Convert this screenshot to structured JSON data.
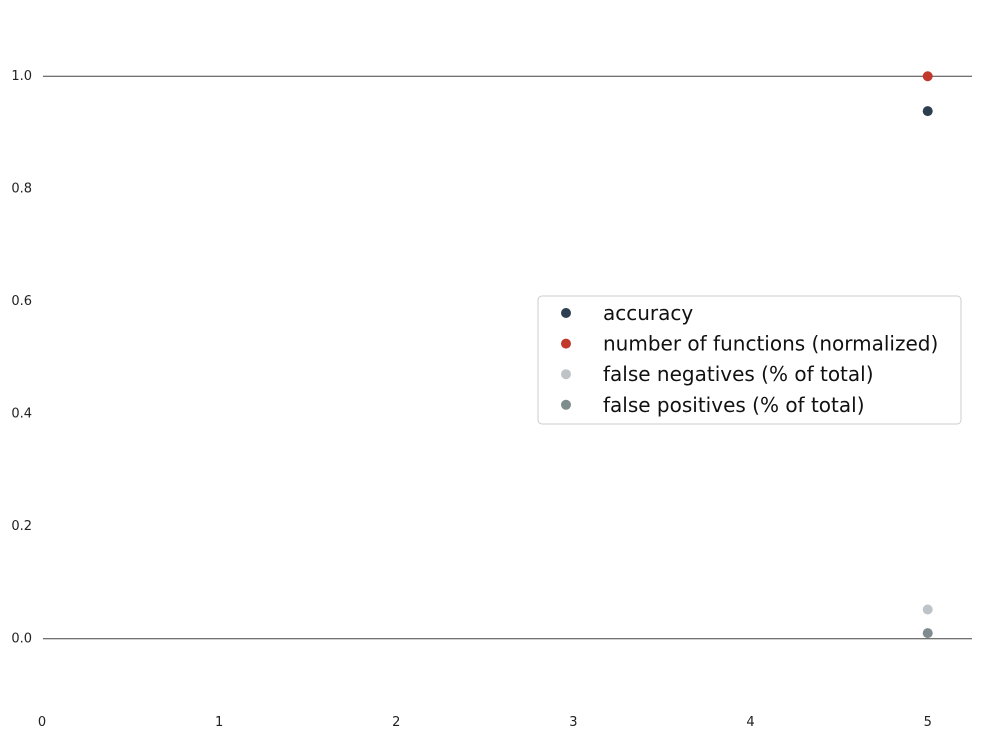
{
  "chart_data": {
    "type": "scatter",
    "title": "",
    "xlabel": "",
    "ylabel": "",
    "xlim": [
      0,
      5.25
    ],
    "ylim": [
      -0.1,
      1.1
    ],
    "xticks": [
      0,
      1,
      2,
      3,
      4,
      5
    ],
    "xtick_labels": [
      "0",
      "1",
      "2",
      "3",
      "4",
      "5"
    ],
    "yticks": [
      0.0,
      0.2,
      0.4,
      0.6,
      0.8,
      1.0
    ],
    "ytick_labels": [
      "0.0",
      "0.2",
      "0.4",
      "0.6",
      "0.8",
      "1.0"
    ],
    "hlines": [
      0.0,
      1.0
    ],
    "grid": false,
    "legend_position": "center-right",
    "series": [
      {
        "name": "accuracy",
        "color": "#2c3e50",
        "points": [
          {
            "x": 5,
            "y": 0.938
          }
        ]
      },
      {
        "name": "number of functions (normalized)",
        "color": "#c0392b",
        "points": [
          {
            "x": 5,
            "y": 1.0
          }
        ]
      },
      {
        "name": "false negatives (% of total)",
        "color": "#bdc3c7",
        "points": [
          {
            "x": 5,
            "y": 0.052
          }
        ]
      },
      {
        "name": "false positives (% of total)",
        "color": "#7f8c8d",
        "points": [
          {
            "x": 5,
            "y": 0.01
          }
        ]
      }
    ]
  }
}
